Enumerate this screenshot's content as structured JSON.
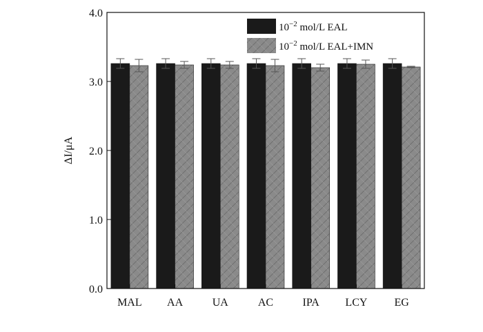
{
  "chart_data": {
    "type": "bar",
    "title": "",
    "xlabel": "",
    "ylabel": "ΔI/μA",
    "ylim": [
      0,
      4
    ],
    "yticks": [
      "0.0",
      "1.0",
      "2.0",
      "3.0",
      "4.0"
    ],
    "grid": false,
    "legend_position": "top-right",
    "categories": [
      "MAL",
      "AA",
      "UA",
      "AC",
      "IPA",
      "LCY",
      "EG"
    ],
    "series": [
      {
        "name": "10−2 mol/L EAL",
        "name_base": "10",
        "name_sup": "−2",
        "name_rest": " mol/L EAL",
        "values": [
          3.26,
          3.26,
          3.26,
          3.26,
          3.26,
          3.26,
          3.26
        ],
        "errors": [
          0.07,
          0.07,
          0.07,
          0.07,
          0.07,
          0.07,
          0.07
        ],
        "color": "#1a1a1a",
        "pattern": "solid"
      },
      {
        "name": "10−2 mol/L EAL+IMN",
        "name_base": "10",
        "name_sup": "−2",
        "name_rest": " mol/L EAL+IMN",
        "values": [
          3.23,
          3.24,
          3.24,
          3.23,
          3.2,
          3.25,
          3.21
        ],
        "errors": [
          0.09,
          0.05,
          0.05,
          0.09,
          0.05,
          0.06,
          0.01
        ],
        "color": "#8a8a8a",
        "pattern": "crosshatch"
      }
    ]
  }
}
